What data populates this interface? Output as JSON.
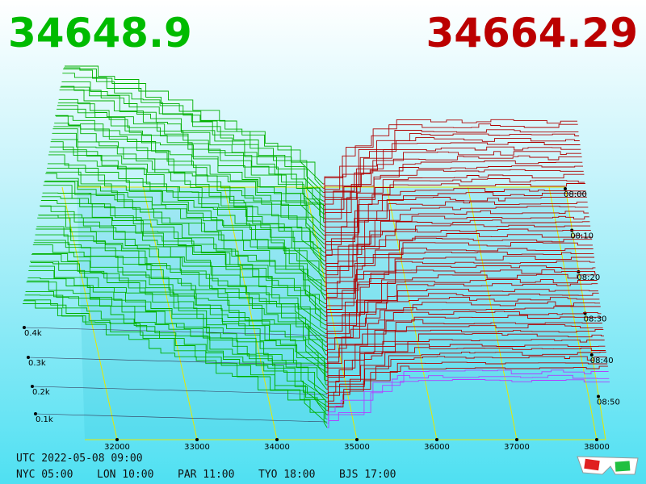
{
  "header": {
    "bid": "34648.9",
    "ask": "34664.29"
  },
  "price_axis": [
    32000,
    33000,
    34000,
    35000,
    36000,
    37000,
    38000
  ],
  "depth_axis": [
    "0.1k",
    "0.2k",
    "0.3k",
    "0.4k"
  ],
  "time_axis": [
    "08:00",
    "08:10",
    "08:20",
    "08:30",
    "08:40",
    "08:50"
  ],
  "footer": {
    "utc": "UTC 2022-05-08 09:00",
    "zones": [
      "NYC 05:00",
      "LON 10:00",
      "PAR 11:00",
      "TYO 18:00",
      "BJS 17:00"
    ]
  }
}
